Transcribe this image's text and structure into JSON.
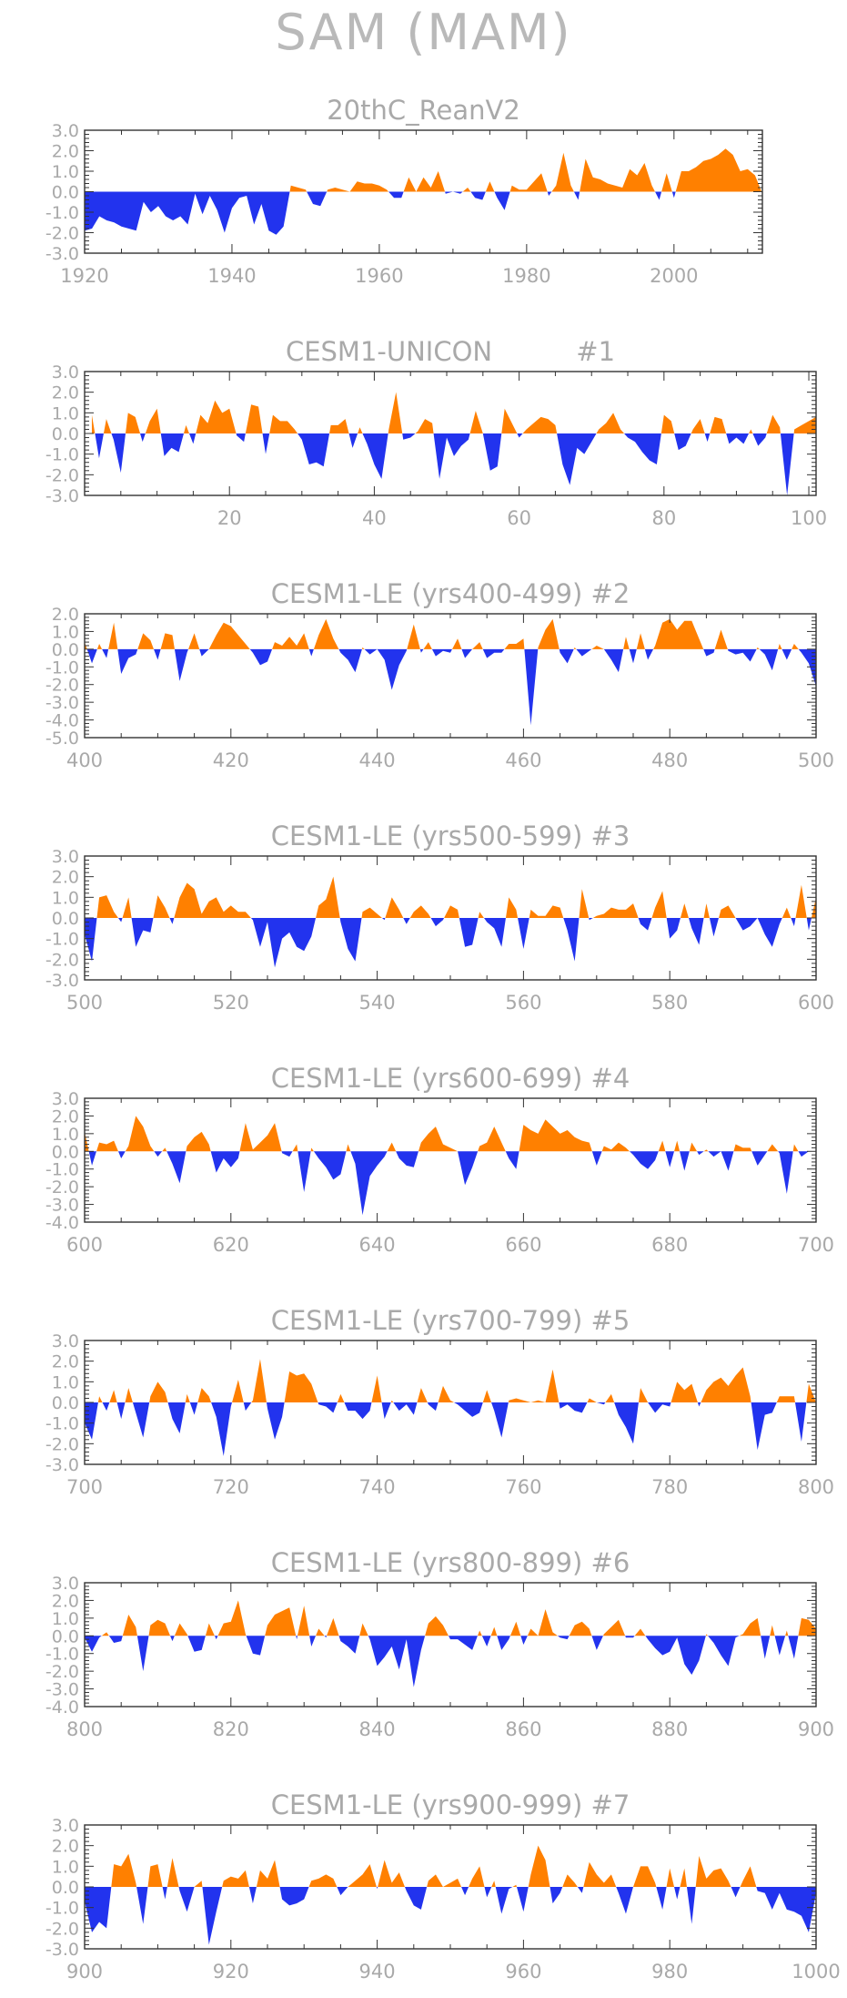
{
  "figure_title": "SAM (MAM)",
  "colors": {
    "positive": "#ff8000",
    "negative": "#2233ee",
    "text": "#a9a9a9",
    "axis": "#333333"
  },
  "chart_data": [
    {
      "type": "area",
      "title": "20thC_ReanV2",
      "xlim": [
        1920,
        2012
      ],
      "xticks": [
        1920,
        1940,
        1960,
        1980,
        2000
      ],
      "ylim": [
        -3.0,
        3.0
      ],
      "yticks": [
        "3.0",
        "2.0",
        "1.0",
        "0.0",
        "-1.0",
        "-2.0",
        "-3.0"
      ],
      "x_start": 1920,
      "values": [
        -1.9,
        -1.8,
        -1.2,
        -1.4,
        -1.5,
        -1.7,
        -1.8,
        -1.9,
        -0.5,
        -1.0,
        -0.7,
        -1.2,
        -1.4,
        -1.2,
        -1.6,
        -0.1,
        -1.1,
        -0.2,
        -0.9,
        -2.0,
        -0.8,
        -0.3,
        -0.2,
        -1.6,
        -0.6,
        -1.9,
        -2.1,
        -1.7,
        0.3,
        0.2,
        0.1,
        -0.6,
        -0.7,
        0.1,
        0.2,
        0.1,
        0.0,
        0.5,
        0.4,
        0.4,
        0.3,
        0.1,
        -0.3,
        -0.3,
        0.7,
        0.0,
        0.7,
        0.2,
        1.0,
        -0.1,
        0.0,
        -0.1,
        0.2,
        -0.3,
        -0.4,
        0.5,
        -0.3,
        -0.9,
        0.3,
        0.1,
        0.1,
        0.5,
        0.9,
        -0.2,
        0.3,
        1.9,
        0.3,
        -0.4,
        1.6,
        0.7,
        0.6,
        0.4,
        0.3,
        0.2,
        1.1,
        0.8,
        1.4,
        0.3,
        -0.4,
        0.9,
        -0.3,
        1.0,
        1.0,
        1.2,
        1.5,
        1.6,
        1.8,
        2.1,
        1.8,
        1.0,
        1.1,
        0.8,
        -0.1
      ],
      "ticks_only_range": [
        2005,
        2012
      ],
      "x_start_ref": 1920
    },
    {
      "type": "area",
      "title": "CESM1-UNICON          #1",
      "xlim": [
        0,
        101
      ],
      "xticks": [
        20,
        40,
        60,
        80,
        100
      ],
      "ylim": [
        -3.0,
        3.0
      ],
      "yticks": [
        "3.0",
        "2.0",
        "1.0",
        "0.0",
        "-1.0",
        "-2.0",
        "-3.0"
      ],
      "x_start": 1,
      "values": [
        0.9,
        -1.2,
        0.7,
        -0.3,
        -1.9,
        1.0,
        0.8,
        -0.4,
        0.6,
        1.2,
        -1.1,
        -0.7,
        -0.9,
        0.4,
        -0.5,
        0.9,
        0.5,
        1.6,
        1.0,
        1.2,
        -0.1,
        -0.4,
        1.4,
        1.3,
        -1.0,
        0.9,
        0.6,
        0.6,
        0.2,
        -0.3,
        -1.5,
        -1.4,
        -1.6,
        0.4,
        0.4,
        0.7,
        -0.7,
        0.3,
        -0.5,
        -1.5,
        -2.2,
        0.2,
        2.0,
        -0.3,
        -0.2,
        0.1,
        0.7,
        0.5,
        -2.2,
        -0.2,
        -1.1,
        -0.6,
        -0.3,
        1.1,
        0.0,
        -1.8,
        -1.6,
        1.2,
        0.5,
        -0.2,
        0.2,
        0.5,
        0.8,
        0.7,
        0.4,
        -1.5,
        -2.5,
        -0.7,
        -1.0,
        -0.4,
        0.2,
        0.5,
        1.0,
        0.2,
        -0.2,
        -0.4,
        -0.9,
        -1.3,
        -1.5,
        0.9,
        0.6,
        -0.8,
        -0.6,
        0.2,
        0.7,
        -0.4,
        0.8,
        0.7,
        -0.5,
        -0.2,
        -0.5,
        0.2,
        -0.6,
        -0.2,
        0.9,
        0.3,
        -3.0,
        0.2,
        0.4,
        0.6,
        0.8
      ],
      "x_start_ref": 1
    },
    {
      "type": "area",
      "title": "CESM1-LE (yrs400-499) #2",
      "xlim": [
        400,
        500
      ],
      "xticks": [
        400,
        420,
        440,
        460,
        480,
        500
      ],
      "ylim": [
        -5.0,
        2.0
      ],
      "yticks": [
        "2.0",
        "1.0",
        "0.0",
        "-1.0",
        "-2.0",
        "-3.0",
        "-4.0",
        "-5.0"
      ],
      "x_start": 400,
      "values": [
        0.4,
        -0.8,
        0.3,
        -0.5,
        1.5,
        -1.4,
        -0.5,
        -0.3,
        0.9,
        0.5,
        -0.6,
        0.9,
        0.8,
        -1.8,
        -0.2,
        0.9,
        -0.4,
        0.0,
        0.8,
        1.5,
        1.3,
        0.8,
        0.3,
        -0.2,
        -0.9,
        -0.7,
        0.4,
        0.2,
        0.7,
        0.2,
        0.9,
        -0.4,
        0.8,
        1.7,
        0.6,
        -0.2,
        -0.6,
        -1.3,
        0.1,
        -0.3,
        0.0,
        -0.6,
        -2.3,
        -0.9,
        -0.1,
        1.4,
        -0.2,
        0.4,
        -0.4,
        -0.1,
        -0.2,
        0.6,
        -0.5,
        0.0,
        0.4,
        -0.5,
        -0.2,
        -0.2,
        0.3,
        0.3,
        0.6,
        -4.3,
        0.1,
        1.1,
        1.7,
        -0.2,
        -0.8,
        0.1,
        -0.4,
        -0.1,
        0.2,
        0.0,
        -0.6,
        -1.3,
        0.7,
        -0.8,
        0.9,
        -0.6,
        0.2,
        1.5,
        1.7,
        1.1,
        1.6,
        1.6,
        0.6,
        -0.4,
        -0.2,
        1.1,
        -0.1,
        -0.3,
        -0.2,
        -0.7,
        0.1,
        -0.3,
        -1.2,
        0.3,
        -0.6,
        0.3,
        -0.2,
        -0.8,
        -2.1
      ],
      "x_start_ref": 400
    },
    {
      "type": "area",
      "title": "CESM1-LE (yrs500-599) #3",
      "xlim": [
        500,
        600
      ],
      "xticks": [
        500,
        520,
        540,
        560,
        580,
        600
      ],
      "ylim": [
        -3.0,
        3.0
      ],
      "yticks": [
        "3.0",
        "2.0",
        "1.0",
        "0.0",
        "-1.0",
        "-2.0",
        "-3.0"
      ],
      "x_start": 500,
      "values": [
        -0.8,
        -2.1,
        1.0,
        1.1,
        0.3,
        -0.2,
        1.0,
        -1.4,
        -0.6,
        -0.7,
        1.1,
        0.5,
        -0.3,
        1.0,
        1.7,
        1.4,
        0.2,
        0.8,
        1.0,
        0.3,
        0.6,
        0.3,
        0.3,
        -0.1,
        -1.4,
        -0.2,
        -2.4,
        -1.0,
        -0.7,
        -1.4,
        -1.6,
        -0.9,
        0.6,
        0.9,
        2.0,
        -0.2,
        -1.5,
        -2.1,
        0.3,
        0.5,
        0.2,
        -0.1,
        1.0,
        0.4,
        -0.3,
        0.3,
        0.6,
        0.2,
        -0.4,
        -0.1,
        0.6,
        0.4,
        -1.4,
        -1.3,
        0.3,
        -0.2,
        -0.5,
        -1.4,
        1.0,
        0.4,
        -1.5,
        0.4,
        0.1,
        0.1,
        0.6,
        0.5,
        -0.6,
        -2.1,
        1.4,
        -0.1,
        0.1,
        0.2,
        0.5,
        0.4,
        0.4,
        0.7,
        -0.3,
        -0.6,
        0.5,
        1.3,
        -1.0,
        -0.6,
        0.7,
        -0.5,
        -1.3,
        0.7,
        -0.9,
        0.4,
        0.6,
        0.0,
        -0.6,
        -0.4,
        0.0,
        -0.8,
        -1.4,
        -0.3,
        0.5,
        -0.4,
        1.6,
        -0.6,
        1.0
      ],
      "x_start_ref": 500
    },
    {
      "type": "area",
      "title": "CESM1-LE (yrs600-699) #4",
      "xlim": [
        600,
        700
      ],
      "xticks": [
        600,
        620,
        640,
        660,
        680,
        700
      ],
      "ylim": [
        -4.0,
        3.0
      ],
      "yticks": [
        "3.0",
        "2.0",
        "1.0",
        "0.0",
        "-1.0",
        "-2.0",
        "-3.0",
        "-4.0"
      ],
      "x_start": 600,
      "values": [
        1.1,
        -0.8,
        0.5,
        0.4,
        0.6,
        -0.4,
        0.3,
        2.0,
        1.4,
        0.3,
        -0.3,
        0.2,
        -0.7,
        -1.8,
        0.3,
        0.8,
        1.1,
        0.4,
        -1.2,
        -0.4,
        -0.9,
        -0.4,
        1.6,
        0.1,
        0.5,
        0.9,
        1.6,
        -0.1,
        -0.3,
        0.4,
        -2.3,
        0.2,
        -0.4,
        -0.9,
        -1.6,
        -1.3,
        0.4,
        -0.7,
        -3.6,
        -1.4,
        -0.8,
        -0.3,
        0.5,
        -0.4,
        -0.8,
        -0.9,
        0.5,
        1.0,
        1.4,
        0.4,
        0.2,
        0.0,
        -1.9,
        -0.9,
        0.3,
        0.5,
        1.4,
        0.5,
        -0.4,
        -1.0,
        1.5,
        1.2,
        1.0,
        1.8,
        1.4,
        1.0,
        1.2,
        0.8,
        0.6,
        0.5,
        -0.8,
        0.3,
        0.1,
        0.5,
        0.2,
        -0.2,
        -0.7,
        -1.0,
        -0.5,
        0.6,
        -0.9,
        0.6,
        -1.1,
        0.5,
        -0.2,
        0.1,
        -0.3,
        0.0,
        -1.1,
        0.4,
        0.2,
        0.2,
        -0.8,
        -0.2,
        0.4,
        -0.1,
        -2.4,
        0.4,
        -0.3,
        0.0,
        0.0
      ],
      "x_start_ref": 600
    },
    {
      "type": "area",
      "title": "CESM1-LE (yrs700-799) #5",
      "xlim": [
        700,
        800
      ],
      "xticks": [
        700,
        720,
        740,
        760,
        780,
        800
      ],
      "ylim": [
        -3.0,
        3.0
      ],
      "yticks": [
        "3.0",
        "2.0",
        "1.0",
        "0.0",
        "-1.0",
        "-2.0",
        "-3.0"
      ],
      "x_start": 700,
      "values": [
        -1.0,
        -1.8,
        0.3,
        -0.4,
        0.6,
        -0.8,
        0.7,
        -0.5,
        -1.7,
        0.3,
        1.0,
        0.5,
        -0.8,
        -1.5,
        0.4,
        -0.6,
        0.7,
        0.3,
        -0.7,
        -2.6,
        -0.2,
        1.1,
        -0.4,
        0.1,
        2.1,
        -0.3,
        -1.8,
        -0.7,
        1.5,
        1.3,
        1.4,
        0.9,
        -0.1,
        -0.2,
        -0.5,
        0.4,
        -0.4,
        -0.4,
        -0.8,
        -0.4,
        1.3,
        -0.8,
        0.1,
        -0.4,
        -0.1,
        -0.6,
        0.7,
        -0.1,
        -0.4,
        0.8,
        0.1,
        -0.1,
        -0.4,
        -0.7,
        -0.5,
        0.6,
        -0.4,
        -1.7,
        0.1,
        0.2,
        0.1,
        0.0,
        0.1,
        0.0,
        1.6,
        -0.3,
        -0.1,
        -0.4,
        -0.5,
        0.2,
        0.0,
        -0.1,
        0.4,
        -0.6,
        -1.2,
        -2.0,
        0.7,
        0.0,
        -0.5,
        -0.1,
        -0.2,
        1.0,
        0.6,
        0.9,
        -0.2,
        0.6,
        1.0,
        1.2,
        0.8,
        1.3,
        1.7,
        0.3,
        -2.3,
        -0.6,
        -0.5,
        0.3,
        0.3,
        0.3,
        -1.9,
        0.9,
        0.0
      ],
      "x_start_ref": 700
    },
    {
      "type": "area",
      "title": "CESM1-LE (yrs800-899) #6",
      "xlim": [
        800,
        900
      ],
      "xticks": [
        800,
        820,
        840,
        860,
        880,
        900
      ],
      "ylim": [
        -4.0,
        3.0
      ],
      "yticks": [
        "3.0",
        "2.0",
        "1.0",
        "0.0",
        "-1.0",
        "-2.0",
        "-3.0",
        "-4.0"
      ],
      "x_start": 800,
      "values": [
        -0.1,
        -0.9,
        -0.1,
        0.2,
        -0.4,
        -0.3,
        1.2,
        0.5,
        -2.0,
        0.6,
        0.9,
        0.7,
        -0.3,
        0.7,
        0.1,
        -0.9,
        -0.8,
        0.7,
        -0.2,
        0.7,
        0.8,
        2.0,
        0.1,
        -1.0,
        -1.1,
        0.6,
        1.2,
        1.4,
        1.6,
        -0.2,
        1.7,
        -0.6,
        0.4,
        -0.1,
        1.0,
        -0.3,
        -0.6,
        -1.0,
        0.7,
        -0.2,
        -1.7,
        -1.2,
        -0.6,
        -1.9,
        -0.2,
        -2.9,
        -0.8,
        0.7,
        1.1,
        0.6,
        -0.2,
        -0.2,
        -0.5,
        -0.8,
        0.3,
        -0.6,
        0.5,
        -0.8,
        -0.2,
        0.8,
        -0.5,
        0.4,
        0.0,
        1.5,
        0.2,
        -0.1,
        -0.2,
        0.6,
        0.8,
        0.4,
        -0.8,
        0.1,
        0.5,
        0.9,
        -0.1,
        -0.1,
        0.4,
        -0.2,
        -0.7,
        -1.1,
        -0.9,
        -0.1,
        -1.6,
        -2.2,
        -1.4,
        0.1,
        -0.4,
        -1.1,
        -1.7,
        -0.1,
        0.1,
        0.7,
        1.0,
        -1.3,
        0.6,
        -1.1,
        0.3,
        -1.3,
        1.0,
        0.9,
        0.4
      ],
      "x_start_ref": 800
    },
    {
      "type": "area",
      "title": "CESM1-LE (yrs900-999) #7",
      "xlim": [
        900,
        1000
      ],
      "xticks": [
        900,
        920,
        940,
        960,
        980,
        1000
      ],
      "ylim": [
        -3.0,
        3.0
      ],
      "yticks": [
        "3.0",
        "2.0",
        "1.0",
        "0.0",
        "-1.0",
        "-2.0",
        "-3.0"
      ],
      "x_start": 900,
      "values": [
        -0.7,
        -2.2,
        -1.7,
        -2.0,
        1.1,
        1.0,
        1.6,
        0.2,
        -1.8,
        1.0,
        1.1,
        -0.6,
        1.4,
        -0.2,
        -1.2,
        0.0,
        0.3,
        -2.8,
        -1.2,
        0.3,
        0.5,
        0.4,
        0.8,
        -0.8,
        0.8,
        0.4,
        1.3,
        -0.6,
        -0.9,
        -0.8,
        -0.6,
        0.3,
        0.4,
        0.6,
        0.4,
        -0.4,
        0.0,
        0.3,
        0.6,
        1.1,
        -0.1,
        1.3,
        0.2,
        0.7,
        -0.2,
        -0.9,
        -1.1,
        0.3,
        0.6,
        0.0,
        0.2,
        0.4,
        -0.4,
        0.4,
        1.0,
        -0.5,
        0.3,
        -1.3,
        -0.1,
        0.1,
        -1.2,
        0.6,
        2.0,
        1.3,
        -0.8,
        -0.3,
        0.6,
        0.2,
        -0.3,
        1.2,
        0.6,
        0.2,
        0.6,
        -0.3,
        -1.3,
        0.0,
        1.0,
        1.0,
        0.2,
        -1.1,
        0.9,
        -0.6,
        0.9,
        -1.8,
        1.5,
        0.4,
        0.8,
        0.9,
        0.3,
        -0.5,
        0.3,
        1.0,
        -0.2,
        -0.3,
        -1.1,
        -0.3,
        -1.1,
        -1.2,
        -1.4,
        -2.2,
        -0.3
      ],
      "x_start_ref": 900
    }
  ]
}
